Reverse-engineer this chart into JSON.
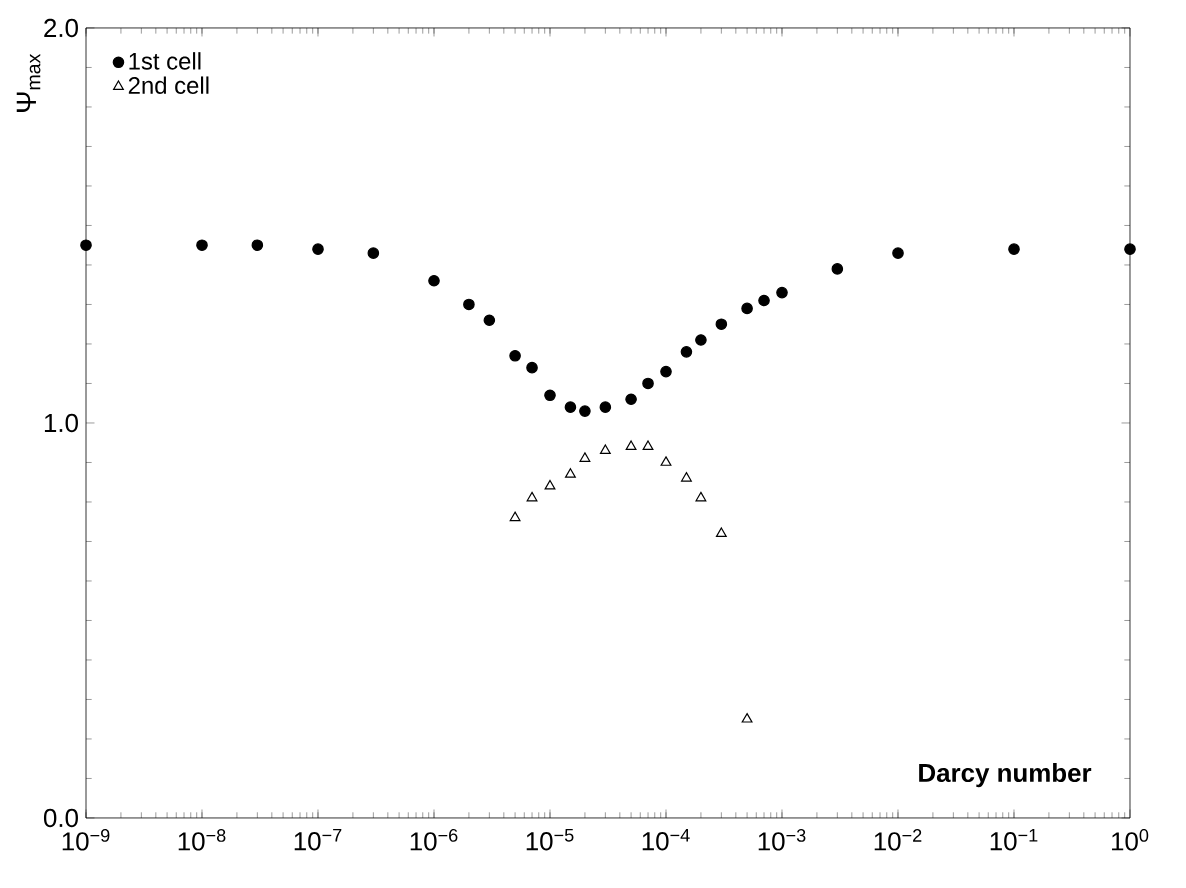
{
  "chart_data": {
    "type": "scatter",
    "xlabel": "Darcy number",
    "ylabel": "Ψ$_{max}$",
    "log": "x",
    "xlim": [
      1e-09,
      1
    ],
    "ylim": [
      0,
      2
    ],
    "xticks": [
      {
        "value": 1e-09,
        "label": "10$^{−9}$"
      },
      {
        "value": 1e-08,
        "label": "10$^{−8}$"
      },
      {
        "value": 1e-07,
        "label": "10$^{−7}$"
      },
      {
        "value": 1e-06,
        "label": "10$^{−6}$"
      },
      {
        "value": 1e-05,
        "label": "10$^{−5}$"
      },
      {
        "value": 0.0001,
        "label": "10$^{−4}$"
      },
      {
        "value": 0.001,
        "label": "10$^{−3}$"
      },
      {
        "value": 0.01,
        "label": "10$^{−2}$"
      },
      {
        "value": 0.1,
        "label": "10$^{−1}$"
      },
      {
        "value": 1,
        "label": "10$^{0}$"
      }
    ],
    "yticks": [
      {
        "value": 0,
        "label": "0.0"
      },
      {
        "value": 1,
        "label": "1.0"
      },
      {
        "value": 2,
        "label": "2.0"
      }
    ],
    "legend": "top left",
    "grid": false,
    "series": [
      {
        "name": "1st cell",
        "color": "#000000",
        "marker": "circle",
        "x": [
          1e-09,
          1e-08,
          3e-08,
          1e-07,
          3e-07,
          1e-06,
          2e-06,
          3e-06,
          5e-06,
          7e-06,
          1e-05,
          1.5e-05,
          2e-05,
          3e-05,
          5e-05,
          7e-05,
          0.0001,
          0.00015,
          0.0002,
          0.0003,
          0.0005,
          0.0007,
          0.001,
          0.003,
          0.01,
          0.1,
          1
        ],
        "values": [
          1.45,
          1.45,
          1.45,
          1.44,
          1.43,
          1.36,
          1.3,
          1.26,
          1.17,
          1.14,
          1.07,
          1.04,
          1.03,
          1.04,
          1.06,
          1.1,
          1.13,
          1.18,
          1.21,
          1.25,
          1.29,
          1.31,
          1.33,
          1.39,
          1.43,
          1.44,
          1.44
        ]
      },
      {
        "name": "2nd cell",
        "color": "#000000",
        "marker": "triangle",
        "x": [
          5e-06,
          7e-06,
          1e-05,
          1.5e-05,
          2e-05,
          3e-05,
          5e-05,
          7e-05,
          0.0001,
          0.00015,
          0.0002,
          0.0003,
          0.0005
        ],
        "values": [
          0.76,
          0.81,
          0.84,
          0.87,
          0.91,
          0.93,
          0.94,
          0.94,
          0.9,
          0.86,
          0.81,
          0.72,
          0.25
        ]
      }
    ]
  }
}
